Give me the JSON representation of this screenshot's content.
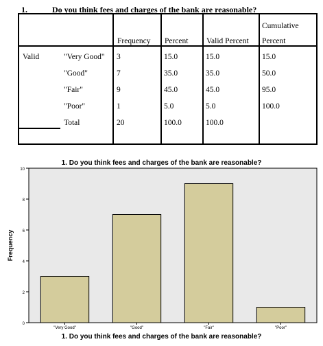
{
  "question": {
    "number": "1.",
    "text": "Do you think fees and charges of the bank are reasonable?"
  },
  "table": {
    "headers": {
      "frequency": "Frequency",
      "percent": "Percent",
      "valid_percent": "Valid Percent",
      "cumulative_line1": "Cumulative",
      "cumulative_line2": "Percent"
    },
    "valid_label": "Valid",
    "rows": [
      {
        "label": "\"Very Good\"",
        "frequency": "3",
        "percent": "15.0",
        "valid_percent": "15.0",
        "cumulative": "15.0"
      },
      {
        "label": "\"Good\"",
        "frequency": "7",
        "percent": "35.0",
        "valid_percent": "35.0",
        "cumulative": "50.0"
      },
      {
        "label": "\"Fair\"",
        "frequency": "9",
        "percent": "45.0",
        "valid_percent": "45.0",
        "cumulative": "95.0"
      },
      {
        "label": "\"Poor\"",
        "frequency": "1",
        "percent": "5.0",
        "valid_percent": "5.0",
        "cumulative": "100.0"
      },
      {
        "label": "Total",
        "frequency": "20",
        "percent": "100.0",
        "valid_percent": "100.0",
        "cumulative": ""
      }
    ]
  },
  "chart_data": {
    "type": "bar",
    "title": "1. Do you think fees and charges of the bank are reasonable?",
    "xlabel": "1. Do you think fees and charges of the bank are reasonable?",
    "ylabel": "Frequency",
    "categories": [
      "\"Very Good\"",
      "\"Good\"",
      "\"Fair\"",
      "\"Poor\""
    ],
    "values": [
      3,
      7,
      9,
      1
    ],
    "ylim": [
      0,
      10
    ],
    "yticks": [
      0,
      2,
      4,
      6,
      8,
      10
    ],
    "grid": false,
    "bar_color": "#d4cc9c",
    "plot_background": "#e9e9e9",
    "legend": "none"
  }
}
